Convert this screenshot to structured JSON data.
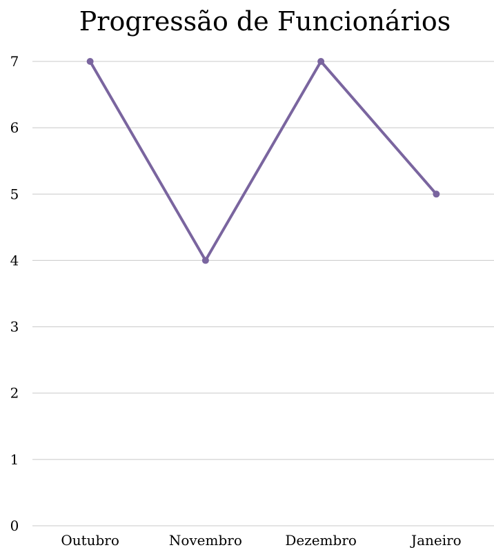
{
  "chart_data": {
    "type": "line",
    "title": "Progressão de Funcionários",
    "xlabel": "",
    "ylabel": "",
    "categories": [
      "Outubro",
      "Novembro",
      "Dezembro",
      "Janeiro"
    ],
    "series": [
      {
        "values": [
          7,
          4,
          7,
          5
        ]
      }
    ],
    "ylim": [
      0,
      7
    ],
    "yticks": [
      "0",
      "1",
      "2",
      "3",
      "4",
      "5",
      "6",
      "7"
    ],
    "grid": true,
    "legend": "none",
    "colors": {
      "line": "#7a659f",
      "grid": "#c8c8c8"
    }
  }
}
